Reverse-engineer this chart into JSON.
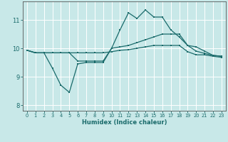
{
  "xlabel": "Humidex (Indice chaleur)",
  "xlim": [
    -0.5,
    23.5
  ],
  "ylim": [
    7.8,
    11.65
  ],
  "yticks": [
    8,
    9,
    10,
    11
  ],
  "xticks": [
    0,
    1,
    2,
    3,
    4,
    5,
    6,
    7,
    8,
    9,
    10,
    11,
    12,
    13,
    14,
    15,
    16,
    17,
    18,
    19,
    20,
    21,
    22,
    23
  ],
  "bg_color": "#c8e8e8",
  "line_color": "#1a6b6b",
  "grid_color": "#ffffff",
  "line1_x": [
    0,
    1,
    2,
    3,
    4,
    5,
    6,
    7,
    8,
    9,
    10,
    11,
    12,
    13,
    14,
    15,
    16,
    17,
    18,
    19,
    20,
    21,
    22,
    23
  ],
  "line1_y": [
    9.93,
    9.84,
    9.84,
    9.3,
    8.7,
    8.45,
    9.45,
    9.5,
    9.5,
    9.5,
    10.0,
    10.65,
    11.25,
    11.05,
    11.35,
    11.1,
    11.1,
    10.65,
    10.4,
    10.1,
    10.05,
    9.9,
    9.75,
    9.72
  ],
  "line2_x": [
    0,
    1,
    2,
    3,
    4,
    5,
    6,
    7,
    8,
    9,
    10,
    11,
    12,
    13,
    14,
    15,
    16,
    17,
    18,
    19,
    20,
    21,
    22,
    23
  ],
  "line2_y": [
    9.93,
    9.84,
    9.84,
    9.84,
    9.84,
    9.84,
    9.55,
    9.55,
    9.55,
    9.55,
    10.0,
    10.05,
    10.1,
    10.2,
    10.3,
    10.4,
    10.5,
    10.5,
    10.5,
    10.1,
    9.9,
    9.82,
    9.75,
    9.72
  ],
  "line3_x": [
    0,
    1,
    2,
    3,
    4,
    5,
    6,
    7,
    8,
    9,
    10,
    11,
    12,
    13,
    14,
    15,
    16,
    17,
    18,
    19,
    20,
    21,
    22,
    23
  ],
  "line3_y": [
    9.93,
    9.84,
    9.84,
    9.84,
    9.84,
    9.84,
    9.84,
    9.84,
    9.84,
    9.84,
    9.88,
    9.93,
    9.95,
    10.0,
    10.05,
    10.1,
    10.1,
    10.1,
    10.1,
    9.88,
    9.77,
    9.77,
    9.72,
    9.68
  ]
}
